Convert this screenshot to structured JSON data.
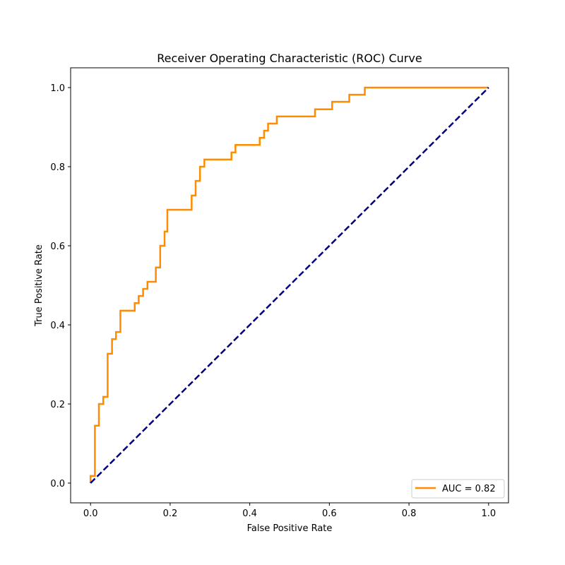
{
  "chart_data": {
    "type": "line",
    "title": "Receiver Operating Characteristic (ROC) Curve",
    "xlabel": "False Positive Rate",
    "ylabel": "True Positive Rate",
    "xlim": [
      -0.05,
      1.05
    ],
    "ylim": [
      -0.05,
      1.05
    ],
    "x_ticks": [
      "0.0",
      "0.2",
      "0.4",
      "0.6",
      "0.8",
      "1.0"
    ],
    "y_ticks": [
      "0.0",
      "0.2",
      "0.4",
      "0.6",
      "0.8",
      "1.0"
    ],
    "grid": false,
    "legend_position": "lower-right",
    "series": [
      {
        "name": "AUC = 0.82",
        "color": "#ff8c00",
        "style": "solid",
        "x": [
          0.0,
          0.0,
          0.011,
          0.011,
          0.021,
          0.021,
          0.032,
          0.032,
          0.043,
          0.043,
          0.054,
          0.054,
          0.064,
          0.064,
          0.075,
          0.075,
          0.111,
          0.111,
          0.121,
          0.121,
          0.132,
          0.132,
          0.143,
          0.143,
          0.164,
          0.164,
          0.175,
          0.175,
          0.186,
          0.186,
          0.193,
          0.193,
          0.254,
          0.254,
          0.264,
          0.264,
          0.275,
          0.275,
          0.286,
          0.286,
          0.354,
          0.354,
          0.364,
          0.364,
          0.425,
          0.425,
          0.436,
          0.436,
          0.446,
          0.446,
          0.468,
          0.468,
          0.564,
          0.564,
          0.607,
          0.607,
          0.65,
          0.65,
          0.689,
          0.689,
          1.0
        ],
        "y": [
          0.0,
          0.018,
          0.018,
          0.145,
          0.145,
          0.2,
          0.2,
          0.218,
          0.218,
          0.327,
          0.327,
          0.364,
          0.364,
          0.382,
          0.382,
          0.436,
          0.436,
          0.455,
          0.455,
          0.473,
          0.473,
          0.491,
          0.491,
          0.509,
          0.509,
          0.545,
          0.545,
          0.6,
          0.6,
          0.636,
          0.636,
          0.691,
          0.691,
          0.727,
          0.727,
          0.764,
          0.764,
          0.8,
          0.8,
          0.818,
          0.818,
          0.836,
          0.836,
          0.855,
          0.855,
          0.873,
          0.873,
          0.891,
          0.891,
          0.909,
          0.909,
          0.927,
          0.927,
          0.945,
          0.945,
          0.964,
          0.964,
          0.982,
          0.982,
          1.0,
          1.0
        ]
      },
      {
        "name": "",
        "color": "#000080",
        "style": "dashed",
        "x": [
          0,
          1
        ],
        "y": [
          0,
          1
        ]
      }
    ]
  }
}
